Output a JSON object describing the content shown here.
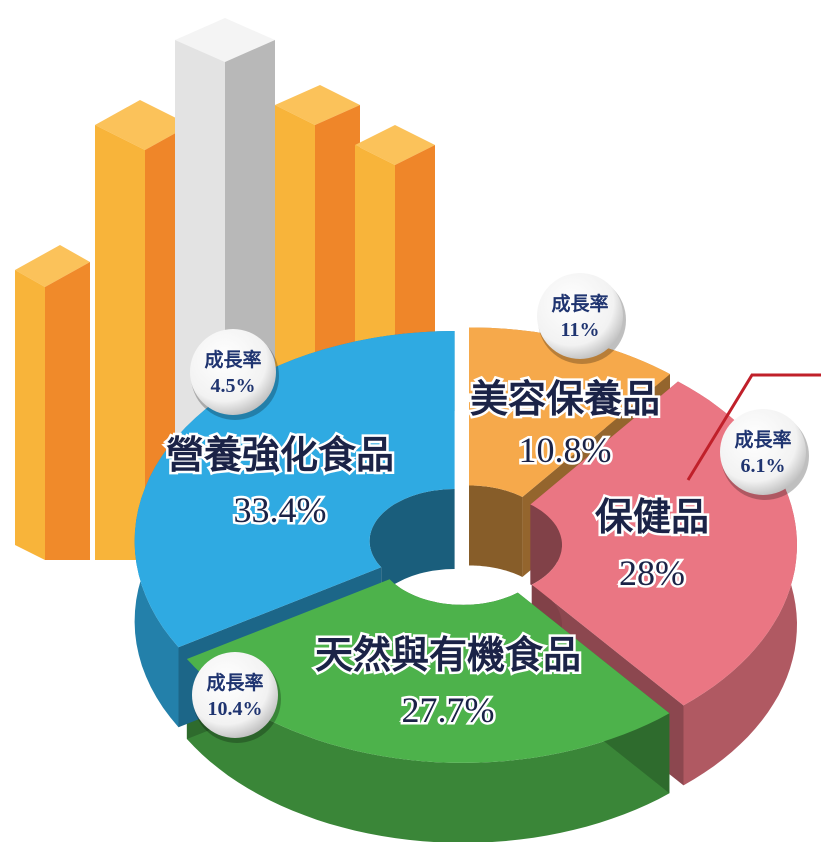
{
  "chart_data": {
    "type": "pie",
    "categories": [
      "美容保養品",
      "保健品",
      "天然與有機食品",
      "營養強化食品"
    ],
    "values": [
      10.8,
      28,
      27.7,
      33.4
    ],
    "value_labels": [
      "10.8%",
      "28%",
      "27.7%",
      "33.4%"
    ],
    "colors": [
      "#f6a94b",
      "#ea7683",
      "#4db24b",
      "#2faae2"
    ],
    "growth": {
      "label": "成長率",
      "values": [
        11,
        6.1,
        10.4,
        4.5
      ],
      "value_labels": [
        "11%",
        "6.1%",
        "10.4%",
        "4.5%"
      ]
    }
  }
}
